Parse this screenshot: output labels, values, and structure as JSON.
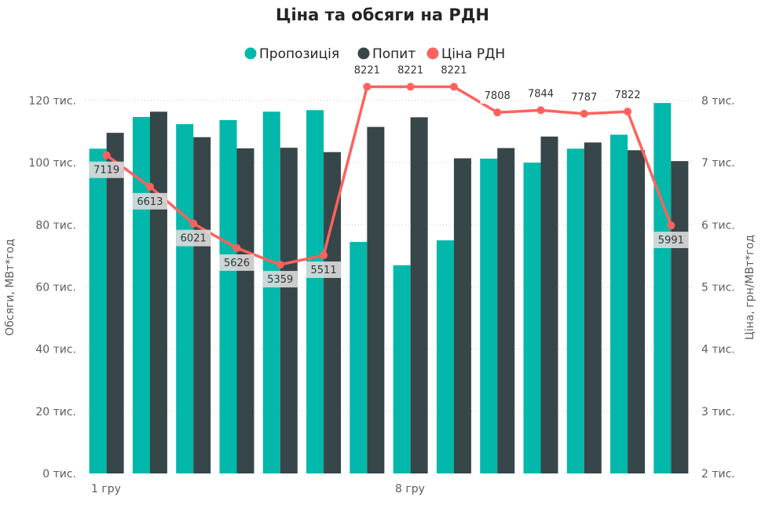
{
  "chart_data": {
    "type": "bar",
    "title": "Ціна та обсяги на РДН",
    "legend_position": "top-center",
    "legend": [
      {
        "label": "Пропозиція",
        "color": "#01b8aa"
      },
      {
        "label": "Попит",
        "color": "#374649"
      },
      {
        "label": "Ціна РДН",
        "color": "#fd625e"
      }
    ],
    "x_tick_labels": [
      {
        "index": 0,
        "label": "1 гру"
      },
      {
        "index": 7,
        "label": "8 гру"
      }
    ],
    "categories_count": 14,
    "series": [
      {
        "name": "Пропозиція",
        "type": "bar",
        "axis": "left",
        "color": "#01b8aa",
        "values": [
          104500,
          114700,
          112400,
          113700,
          116400,
          116900,
          74500,
          67000,
          75000,
          101300,
          100000,
          104500,
          109000,
          119200
        ]
      },
      {
        "name": "Попит",
        "type": "bar",
        "axis": "left",
        "color": "#374649",
        "values": [
          109600,
          116400,
          108200,
          104600,
          104800,
          103400,
          111500,
          114600,
          101400,
          104700,
          108400,
          106500,
          104000,
          100500
        ]
      },
      {
        "name": "Ціна РДН",
        "type": "line",
        "axis": "right",
        "color": "#fd625e",
        "values": [
          7119,
          6613,
          6021,
          5626,
          5359,
          5511,
          8221,
          8221,
          8221,
          7808,
          7844,
          7787,
          7822,
          5991
        ],
        "labels": [
          "7119",
          "6613",
          "6021",
          "5626",
          "5359",
          "5511",
          "8221",
          "8221",
          "8221",
          "7808",
          "7844",
          "7787",
          "7822",
          "5991"
        ]
      }
    ],
    "y_left": {
      "label": "Обсяги, МВт*год",
      "min": 0,
      "max": 120000,
      "ticks": [
        "0 тис.",
        "20 тис.",
        "40 тис.",
        "60 тис.",
        "80 тис.",
        "100 тис.",
        "120 тис."
      ]
    },
    "y_right": {
      "label": "Ціна, грн/МВт*год",
      "min": 2000,
      "max": 8000,
      "ticks": [
        "2 тис.",
        "3 тис.",
        "4 тис.",
        "5 тис.",
        "6 тис.",
        "7 тис.",
        "8 тис."
      ]
    },
    "grid": true
  }
}
